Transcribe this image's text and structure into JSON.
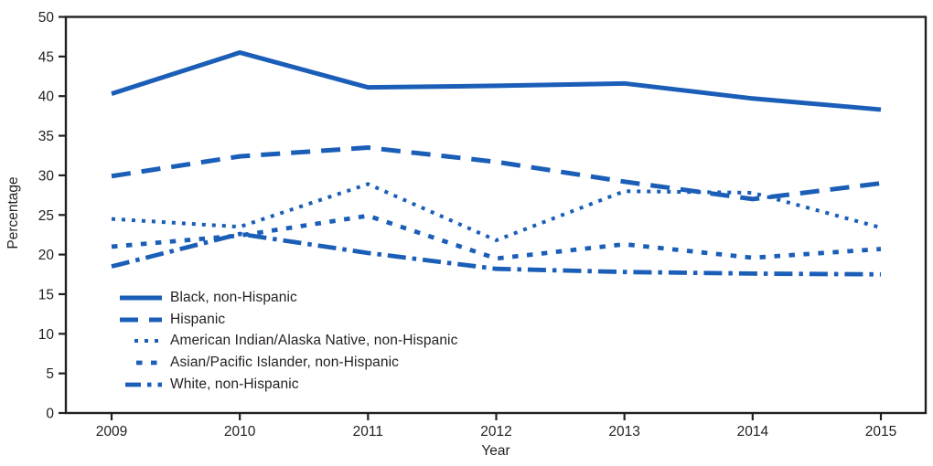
{
  "figure": {
    "background": "#ffffff"
  },
  "chart_data": {
    "type": "line",
    "title": "",
    "xlabel": "Year",
    "ylabel": "Percentage",
    "x": [
      2009,
      2010,
      2011,
      2012,
      2013,
      2014,
      2015
    ],
    "ylim": [
      0,
      50
    ],
    "yticks": [
      0,
      5,
      10,
      15,
      20,
      25,
      30,
      35,
      40,
      45,
      50
    ],
    "grid": false,
    "legend_position": "inside-lower-left",
    "line_color": "#1A5EB8",
    "axis_color": "#231F20",
    "series": [
      {
        "name": "Black, non-Hispanic",
        "style": "solid",
        "values": [
          40.3,
          45.5,
          41.1,
          41.3,
          41.6,
          39.7,
          38.3
        ]
      },
      {
        "name": "Hispanic",
        "style": "long-dash",
        "values": [
          29.9,
          32.4,
          33.5,
          31.7,
          29.2,
          27.0,
          29.0
        ]
      },
      {
        "name": "American Indian/Alaska Native, non-Hispanic",
        "style": "dot",
        "values": [
          24.5,
          23.5,
          28.9,
          21.8,
          28.0,
          27.8,
          23.4
        ]
      },
      {
        "name": "Asian/Pacific Islander, non-Hispanic",
        "style": "square-dash",
        "values": [
          21.0,
          22.4,
          24.9,
          19.5,
          21.3,
          19.6,
          20.7
        ]
      },
      {
        "name": "White, non-Hispanic",
        "style": "dash-dot",
        "values": [
          18.5,
          22.6,
          20.2,
          18.2,
          17.8,
          17.6,
          17.5
        ]
      }
    ]
  }
}
